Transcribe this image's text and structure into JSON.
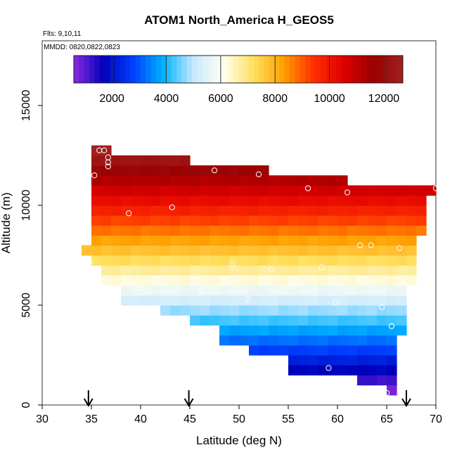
{
  "chart_data": {
    "type": "heatmap",
    "title": "ATOM1 North_America H_GEOS5",
    "flights_label": "Flts: 9,10,11",
    "dates_label": "MMDD: 0820,0822,0823",
    "xlabel": "Latitude (deg N)",
    "ylabel": "Altitude (m)",
    "xlim": [
      30,
      70
    ],
    "ylim": [
      0,
      18000
    ],
    "x_ticks": [
      30,
      35,
      40,
      45,
      50,
      55,
      60,
      65,
      70
    ],
    "y_ticks": [
      0,
      5000,
      10000,
      15000
    ],
    "colorbar": {
      "range": [
        600,
        12700
      ],
      "ticks": [
        2000,
        4000,
        6000,
        8000,
        10000,
        12000
      ],
      "colors": [
        "#8a2be2",
        "#0000b8",
        "#0040ff",
        "#00b4ff",
        "#c8e8ff",
        "#fffff0",
        "#ffe060",
        "#ffa000",
        "#ff3000",
        "#e00000",
        "#9a0000",
        "#a02020"
      ]
    },
    "layers": [
      {
        "alt_min": 500,
        "alt_max": 1000,
        "lat_min": 65,
        "lat_max": 66
      },
      {
        "alt_min": 1000,
        "alt_max": 1500,
        "lat_min": 62,
        "lat_max": 66
      },
      {
        "alt_min": 1500,
        "alt_max": 2000,
        "lat_min": 55,
        "lat_max": 66
      },
      {
        "alt_min": 2000,
        "alt_max": 2500,
        "lat_min": 55,
        "lat_max": 66
      },
      {
        "alt_min": 2500,
        "alt_max": 3000,
        "lat_min": 51,
        "lat_max": 66
      },
      {
        "alt_min": 3000,
        "alt_max": 3500,
        "lat_min": 48,
        "lat_max": 66
      },
      {
        "alt_min": 3500,
        "alt_max": 4000,
        "lat_min": 48,
        "lat_max": 67
      },
      {
        "alt_min": 4000,
        "alt_max": 4500,
        "lat_min": 45,
        "lat_max": 67
      },
      {
        "alt_min": 4500,
        "alt_max": 5000,
        "lat_min": 42,
        "lat_max": 67
      },
      {
        "alt_min": 5000,
        "alt_max": 5500,
        "lat_min": 38,
        "lat_max": 67
      },
      {
        "alt_min": 5500,
        "alt_max": 6000,
        "lat_min": 38,
        "lat_max": 67
      },
      {
        "alt_min": 6000,
        "alt_max": 6500,
        "lat_min": 36,
        "lat_max": 68
      },
      {
        "alt_min": 6500,
        "alt_max": 7000,
        "lat_min": 36,
        "lat_max": 68
      },
      {
        "alt_min": 7000,
        "alt_max": 7500,
        "lat_min": 35,
        "lat_max": 68
      },
      {
        "alt_min": 7500,
        "alt_max": 8000,
        "lat_min": 34,
        "lat_max": 68
      },
      {
        "alt_min": 8000,
        "alt_max": 8500,
        "lat_min": 35,
        "lat_max": 68
      },
      {
        "alt_min": 8500,
        "alt_max": 9000,
        "lat_min": 35,
        "lat_max": 69
      },
      {
        "alt_min": 9000,
        "alt_max": 9500,
        "lat_min": 35,
        "lat_max": 69
      },
      {
        "alt_min": 9500,
        "alt_max": 10000,
        "lat_min": 35,
        "lat_max": 69
      },
      {
        "alt_min": 10000,
        "alt_max": 10500,
        "lat_min": 35,
        "lat_max": 69
      },
      {
        "alt_min": 10500,
        "alt_max": 11000,
        "lat_min": 35,
        "lat_max": 70
      },
      {
        "alt_min": 11000,
        "alt_max": 11500,
        "lat_min": 35,
        "lat_max": 61
      },
      {
        "alt_min": 11500,
        "alt_max": 12000,
        "lat_min": 35,
        "lat_max": 53
      },
      {
        "alt_min": 12000,
        "alt_max": 12500,
        "lat_min": 35,
        "lat_max": 45
      },
      {
        "alt_min": 12500,
        "alt_max": 13000,
        "lat_min": 35,
        "lat_max": 37
      }
    ],
    "points": [
      {
        "lat": 35.8,
        "alt": 12750
      },
      {
        "lat": 36.3,
        "alt": 12750
      },
      {
        "lat": 36.7,
        "alt": 12400
      },
      {
        "lat": 36.7,
        "alt": 12150
      },
      {
        "lat": 36.7,
        "alt": 11950
      },
      {
        "lat": 35.3,
        "alt": 11500
      },
      {
        "lat": 47.5,
        "alt": 11750
      },
      {
        "lat": 52.0,
        "alt": 11550
      },
      {
        "lat": 70.0,
        "alt": 10850
      },
      {
        "lat": 57.0,
        "alt": 10850
      },
      {
        "lat": 61.0,
        "alt": 10650
      },
      {
        "lat": 38.8,
        "alt": 9600
      },
      {
        "lat": 43.2,
        "alt": 9900
      },
      {
        "lat": 62.3,
        "alt": 8000
      },
      {
        "lat": 63.4,
        "alt": 8000
      },
      {
        "lat": 66.3,
        "alt": 7850
      },
      {
        "lat": 34.8,
        "alt": 7150
      },
      {
        "lat": 49.3,
        "alt": 7050
      },
      {
        "lat": 53.3,
        "alt": 6800
      },
      {
        "lat": 58.4,
        "alt": 6900
      },
      {
        "lat": 36.5,
        "alt": 6050
      },
      {
        "lat": 40.0,
        "alt": 5850
      },
      {
        "lat": 46.2,
        "alt": 5750
      },
      {
        "lat": 55.3,
        "alt": 5950
      },
      {
        "lat": 50.9,
        "alt": 5300
      },
      {
        "lat": 59.8,
        "alt": 5150
      },
      {
        "lat": 64.5,
        "alt": 4900
      },
      {
        "lat": 37.8,
        "alt": 4550
      },
      {
        "lat": 41.5,
        "alt": 4700
      },
      {
        "lat": 65.5,
        "alt": 3950
      },
      {
        "lat": 59.1,
        "alt": 1850
      },
      {
        "lat": 65.0,
        "alt": 600
      }
    ],
    "arrows": [
      34.7,
      44.9,
      67.0
    ]
  }
}
